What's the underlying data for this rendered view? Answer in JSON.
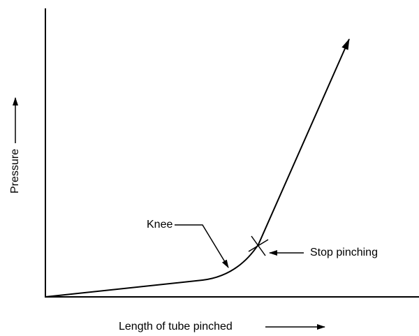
{
  "diagram": {
    "y_axis_label": "Pressure",
    "x_axis_label": "Length of tube pinched",
    "annotations": [
      "Knee",
      "Stop pinching"
    ]
  }
}
